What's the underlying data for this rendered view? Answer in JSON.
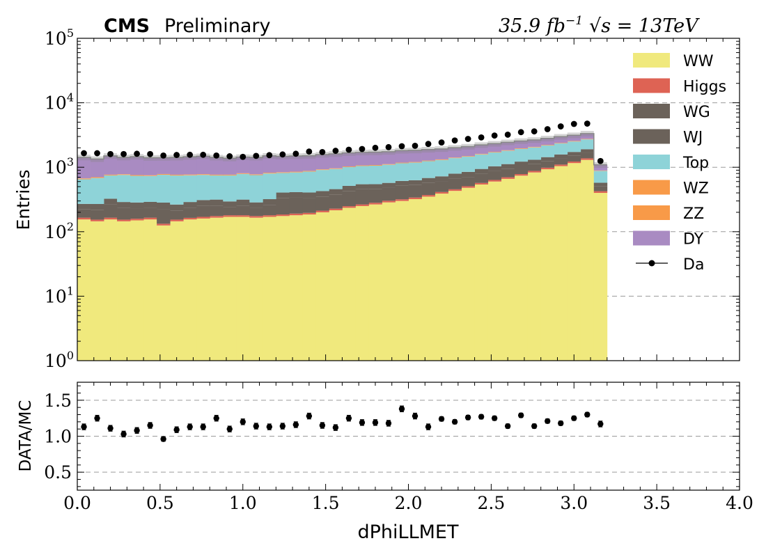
{
  "chart_data": [
    {
      "type": "area",
      "header_experiment": "CMS",
      "header_status": "Preliminary",
      "header_lumi": "35.9 fb",
      "header_lumi_sup": "−1",
      "header_energy": "√s = 13TeV",
      "xlim": [
        0,
        4.0
      ],
      "ylim": [
        1,
        100000
      ],
      "yscale": "log",
      "ylabel": "Entries",
      "xlabel": "dPhiLLMET",
      "y_tick_labels": [
        "10",
        "10",
        "10",
        "10",
        "10",
        "10"
      ],
      "y_tick_exponents": [
        "0",
        "1",
        "2",
        "3",
        "4",
        "5"
      ],
      "grid": "horizontal dashed",
      "legend_position": "top-right",
      "bin_width": 0.08,
      "bin_edges_start": 0.0,
      "n_bins": 40,
      "series": [
        {
          "name": "WW",
          "color": "#f0e97d",
          "values": [
            155,
            145,
            155,
            145,
            150,
            155,
            125,
            145,
            155,
            160,
            165,
            170,
            170,
            165,
            170,
            175,
            180,
            185,
            200,
            215,
            235,
            250,
            265,
            285,
            300,
            320,
            350,
            390,
            430,
            480,
            540,
            600,
            660,
            740,
            830,
            930,
            1040,
            1160,
            1300,
            400
          ]
        },
        {
          "name": "Higgs",
          "color": "#de6354",
          "values": [
            10,
            9,
            10,
            9,
            9,
            10,
            8,
            9,
            9,
            10,
            10,
            10,
            10,
            10,
            10,
            10,
            11,
            11,
            12,
            13,
            14,
            15,
            16,
            17,
            18,
            19,
            21,
            23,
            25,
            28,
            31,
            35,
            39,
            43,
            48,
            54,
            60,
            67,
            75,
            25
          ]
        },
        {
          "name": "WG",
          "color": "#6b625a",
          "values": [
            60,
            65,
            100,
            80,
            70,
            70,
            90,
            60,
            70,
            85,
            80,
            60,
            75,
            60,
            80,
            150,
            150,
            140,
            140,
            150,
            180,
            190,
            180,
            180,
            200,
            190,
            200,
            190,
            210,
            200,
            220,
            240,
            250,
            260,
            240,
            250,
            270,
            280,
            300,
            80
          ]
        },
        {
          "name": "WJ",
          "color": "#6b625a",
          "values": [
            45,
            50,
            60,
            55,
            55,
            55,
            60,
            50,
            55,
            55,
            60,
            55,
            60,
            50,
            60,
            70,
            70,
            70,
            75,
            80,
            85,
            90,
            85,
            90,
            95,
            100,
            110,
            120,
            130,
            140,
            150,
            160,
            170,
            180,
            190,
            200,
            210,
            220,
            230,
            70
          ]
        },
        {
          "name": "Top",
          "color": "#8ed3d8",
          "values": [
            380,
            410,
            420,
            470,
            450,
            440,
            480,
            480,
            460,
            450,
            430,
            450,
            470,
            470,
            480,
            410,
            420,
            450,
            480,
            480,
            490,
            500,
            510,
            520,
            540,
            550,
            560,
            570,
            590,
            610,
            640,
            660,
            680,
            700,
            720,
            740,
            760,
            780,
            800,
            300
          ]
        },
        {
          "name": "WZ",
          "color": "#f89a48",
          "values": [
            12,
            12,
            12,
            12,
            12,
            12,
            12,
            12,
            12,
            12,
            12,
            12,
            12,
            12,
            12,
            12,
            12,
            12,
            12,
            13,
            13,
            13,
            14,
            14,
            14,
            15,
            15,
            16,
            16,
            17,
            18,
            19,
            20,
            21,
            22,
            23,
            24,
            25,
            26,
            8
          ]
        },
        {
          "name": "ZZ",
          "color": "#f89a48",
          "values": [
            10,
            10,
            10,
            10,
            10,
            10,
            10,
            10,
            10,
            10,
            10,
            10,
            10,
            10,
            10,
            10,
            10,
            10,
            10,
            11,
            11,
            11,
            12,
            12,
            12,
            13,
            13,
            14,
            14,
            15,
            16,
            17,
            18,
            19,
            20,
            21,
            22,
            23,
            24,
            7
          ]
        },
        {
          "name": "DY",
          "color": "#a98bc2",
          "values": [
            750,
            640,
            730,
            640,
            700,
            650,
            620,
            650,
            680,
            700,
            650,
            610,
            630,
            640,
            680,
            640,
            640,
            630,
            640,
            650,
            640,
            630,
            630,
            620,
            630,
            620,
            610,
            600,
            590,
            600,
            600,
            590,
            600,
            590,
            580,
            580,
            590,
            580,
            570,
            200
          ]
        }
      ],
      "data_series": {
        "name": "Da",
        "x": [
          0.04,
          0.12,
          0.2,
          0.28,
          0.36,
          0.44,
          0.52,
          0.6,
          0.68,
          0.76,
          0.84,
          0.92,
          1.0,
          1.08,
          1.16,
          1.24,
          1.32,
          1.4,
          1.48,
          1.56,
          1.64,
          1.72,
          1.8,
          1.88,
          1.96,
          2.04,
          2.12,
          2.2,
          2.28,
          2.36,
          2.44,
          2.52,
          2.6,
          2.68,
          2.76,
          2.84,
          2.92,
          3.0,
          3.08,
          3.16
        ],
        "values": [
          1650,
          1650,
          1600,
          1600,
          1620,
          1600,
          1520,
          1550,
          1560,
          1560,
          1520,
          1480,
          1450,
          1500,
          1540,
          1580,
          1620,
          1750,
          1720,
          1800,
          1870,
          1920,
          2000,
          2050,
          2120,
          2150,
          2300,
          2420,
          2600,
          2750,
          2900,
          3100,
          3200,
          3500,
          3600,
          3900,
          4300,
          4700,
          4750,
          1250
        ]
      },
      "band_color": "#888888"
    },
    {
      "type": "scatter",
      "ylabel": "DATA/MC",
      "xlabel": "dPhiLLMET",
      "xlim": [
        0,
        4.0
      ],
      "ylim": [
        0.25,
        1.75
      ],
      "y_ticks": [
        0.5,
        1.0,
        1.5
      ],
      "y_tick_labels": [
        "0.5",
        "1.0",
        "1.5"
      ],
      "x_ticks": [
        0.0,
        0.5,
        1.0,
        1.5,
        2.0,
        2.5,
        3.0,
        3.5,
        4.0
      ],
      "x_tick_labels": [
        "0.0",
        "0.5",
        "1.0",
        "1.5",
        "2.0",
        "2.5",
        "3.0",
        "3.5",
        "4.0"
      ],
      "grid": "horizontal dashed",
      "x": [
        0.04,
        0.12,
        0.2,
        0.28,
        0.36,
        0.44,
        0.52,
        0.6,
        0.68,
        0.76,
        0.84,
        0.92,
        1.0,
        1.08,
        1.16,
        1.24,
        1.32,
        1.4,
        1.48,
        1.56,
        1.64,
        1.72,
        1.8,
        1.88,
        1.96,
        2.04,
        2.12,
        2.2,
        2.28,
        2.36,
        2.44,
        2.52,
        2.6,
        2.68,
        2.76,
        2.84,
        2.92,
        3.0,
        3.08,
        3.16
      ],
      "values": [
        1.13,
        1.25,
        1.11,
        1.03,
        1.08,
        1.15,
        0.96,
        1.09,
        1.13,
        1.13,
        1.25,
        1.1,
        1.2,
        1.14,
        1.13,
        1.14,
        1.16,
        1.28,
        1.15,
        1.12,
        1.25,
        1.19,
        1.19,
        1.18,
        1.38,
        1.28,
        1.13,
        1.24,
        1.2,
        1.26,
        1.27,
        1.25,
        1.14,
        1.29,
        1.14,
        1.21,
        1.18,
        1.25,
        1.3,
        1.17
      ],
      "errors": [
        0.04,
        0.04,
        0.04,
        0.04,
        0.04,
        0.04,
        0.03,
        0.04,
        0.04,
        0.04,
        0.04,
        0.04,
        0.04,
        0.04,
        0.04,
        0.04,
        0.04,
        0.04,
        0.04,
        0.04,
        0.04,
        0.04,
        0.04,
        0.04,
        0.04,
        0.04,
        0.04,
        0.03,
        0.03,
        0.03,
        0.03,
        0.03,
        0.03,
        0.03,
        0.03,
        0.03,
        0.03,
        0.03,
        0.03,
        0.04
      ]
    }
  ]
}
